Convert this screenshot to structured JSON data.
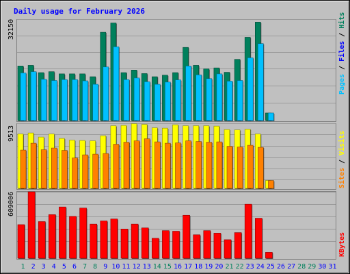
{
  "chart_data": {
    "type": "bar",
    "title": "Daily usage for February 2026",
    "colors": {
      "frame_bg": "#c0c0c0",
      "plot_bg": "#c0c0c0",
      "title": "#0000ff",
      "hits": "#00805c",
      "files": "#00c0ff",
      "pages": "#00c0ff",
      "visits": "#ffff00",
      "sites": "#ff8000",
      "kbytes": "#ff0000",
      "weekday_label": "#0000ff",
      "weekend_label": "#00805c"
    },
    "days": [
      "1",
      "2",
      "3",
      "4",
      "5",
      "6",
      "7",
      "8",
      "9",
      "10",
      "11",
      "12",
      "13",
      "14",
      "15",
      "16",
      "17",
      "18",
      "19",
      "20",
      "21",
      "22",
      "23",
      "24",
      "25",
      "26",
      "27",
      "28",
      "29",
      "30",
      "31"
    ],
    "weekend_days": [
      "1",
      "7",
      "8",
      "14",
      "15",
      "21",
      "22",
      "28",
      "29"
    ],
    "panels": [
      {
        "id": "hits-files",
        "max_label": "32150",
        "ymax": 32150,
        "axis_label": [
          "Pages",
          " / ",
          "Files",
          " / ",
          "Hits"
        ],
        "series": [
          {
            "name": "Hits",
            "values": [
              17300,
              17500,
              15200,
              15500,
              14800,
              14800,
              14800,
              13900,
              28000,
              30950,
              15200,
              16000,
              14900,
              13900,
              14400,
              15200,
              23200,
              17500,
              16400,
              16700,
              15300,
              19400,
              26400,
              31200,
              2400,
              0,
              0,
              0,
              0,
              0,
              0
            ]
          },
          {
            "name": "Files",
            "values": [
              15100,
              15500,
              13100,
              12700,
              13000,
              13000,
              12600,
              11500,
              17000,
              23400,
              13000,
              13500,
              12300,
              11500,
              12200,
              12900,
              17300,
              14500,
              13300,
              14800,
              12500,
              12700,
              19900,
              24400,
              2400,
              0,
              0,
              0,
              0,
              0,
              0
            ]
          }
        ]
      },
      {
        "id": "visits-sites",
        "max_label": "9513",
        "ymax": 9513,
        "axis_label": [
          "Sites",
          " / ",
          "Visits"
        ],
        "series": [
          {
            "name": "Visits",
            "values": [
              7950,
              8100,
              7500,
              7950,
              7300,
              7050,
              7000,
              6950,
              7700,
              9150,
              9200,
              9450,
              9350,
              8850,
              8800,
              9300,
              9150,
              9150,
              9150,
              9100,
              8600,
              8550,
              8650,
              7950,
              1150,
              0,
              0,
              0,
              0,
              0,
              0
            ]
          },
          {
            "name": "Sites",
            "values": [
              5600,
              6600,
              5650,
              5900,
              5550,
              4450,
              4900,
              5000,
              5100,
              6450,
              6750,
              6950,
              7250,
              6800,
              6600,
              6650,
              6950,
              6850,
              6750,
              6800,
              6150,
              6050,
              6300,
              6000,
              1150,
              0,
              0,
              0,
              0,
              0,
              0
            ]
          }
        ]
      },
      {
        "id": "kbytes",
        "max_label": "609006",
        "ymax": 609006,
        "axis_label": [
          "KBytes"
        ],
        "series": [
          {
            "name": "KBytes",
            "values": [
              308000,
              609006,
              336000,
              400000,
              470000,
              384000,
              460000,
              313000,
              342000,
              360000,
              268000,
              313000,
              278000,
              183000,
              253000,
              248000,
              394000,
              215000,
              253000,
              230000,
              170000,
              235000,
              495000,
              367000,
              54000,
              0,
              0,
              0,
              0,
              0,
              0
            ]
          }
        ]
      }
    ]
  }
}
